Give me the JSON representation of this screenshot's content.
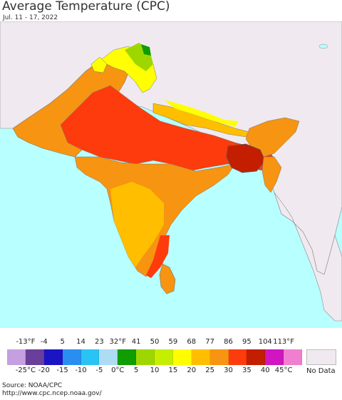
{
  "header": {
    "title": "Average Temperature (CPC)",
    "date_range": "Jul. 11 - 17, 2022"
  },
  "map": {
    "region": "South Asia",
    "colors": {
      "ocean": "#b8ffff",
      "no_data_land": "#f0eaf0",
      "hot_orange": "#f79411",
      "red_orange": "#fe3b0c",
      "amber": "#ffbf00",
      "yellow": "#ffff00",
      "lime": "#9ed700",
      "green": "#0f9d00",
      "border": "#666666"
    }
  },
  "legend": {
    "fahrenheit_labels": [
      "-13°F",
      "-4",
      "5",
      "14",
      "23",
      "32°F",
      "41",
      "50",
      "59",
      "68",
      "77",
      "86",
      "95",
      "104",
      "113°F"
    ],
    "celsius_labels": [
      "-25°C",
      "-20",
      "-15",
      "-10",
      "-5",
      "0°C",
      "5",
      "10",
      "15",
      "20",
      "25",
      "30",
      "35",
      "40",
      "45°C"
    ],
    "swatch_colors": [
      "#c59fe0",
      "#6a3f9b",
      "#1a14c5",
      "#2a8ef0",
      "#29c3f4",
      "#aedcf3",
      "#0f9d00",
      "#9ed700",
      "#c6ee00",
      "#fffd00",
      "#ffbf00",
      "#f79411",
      "#fe3b0c",
      "#c31e00",
      "#d115c1",
      "#f07fcf"
    ],
    "no_data_label": "No Data"
  },
  "source": {
    "line1": "Source: NOAA/CPC",
    "line2": "http://www.cpc.ncep.noaa.gov/"
  }
}
